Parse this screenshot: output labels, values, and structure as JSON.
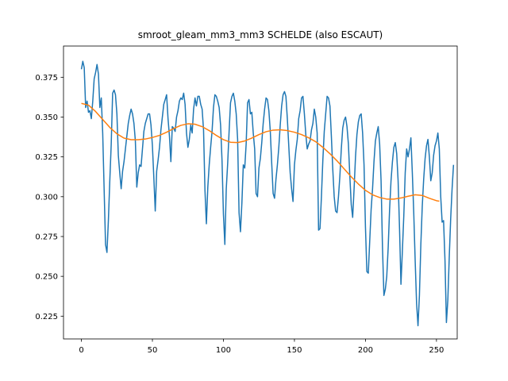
{
  "chart_data": {
    "type": "line",
    "title": "smroot_gleam_mm3_mm3 SCHELDE (also ESCAUT)",
    "xlabel": "",
    "ylabel": "",
    "xlim": [
      -12.6,
      264.6
    ],
    "ylim": [
      0.2107,
      0.3946
    ],
    "x_ticks": [
      0,
      50,
      100,
      150,
      200,
      250
    ],
    "x_tick_labels": [
      "0",
      "50",
      "100",
      "150",
      "200",
      "250"
    ],
    "y_ticks": [
      0.225,
      0.25,
      0.275,
      0.3,
      0.325,
      0.35,
      0.375
    ],
    "y_tick_labels": [
      "0.225",
      "0.250",
      "0.275",
      "0.300",
      "0.325",
      "0.350",
      "0.375"
    ],
    "grid": false,
    "legend": "none",
    "series": [
      {
        "color": "#1f77b4",
        "x_start": 0,
        "x_step": 1,
        "values": [
          0.38,
          0.385,
          0.381,
          0.356,
          0.36,
          0.353,
          0.354,
          0.349,
          0.36,
          0.374,
          0.378,
          0.383,
          0.377,
          0.356,
          0.362,
          0.34,
          0.305,
          0.27,
          0.265,
          0.285,
          0.31,
          0.333,
          0.365,
          0.367,
          0.364,
          0.352,
          0.326,
          0.315,
          0.305,
          0.316,
          0.322,
          0.33,
          0.338,
          0.346,
          0.351,
          0.355,
          0.352,
          0.346,
          0.335,
          0.306,
          0.315,
          0.32,
          0.319,
          0.33,
          0.341,
          0.346,
          0.349,
          0.352,
          0.352,
          0.345,
          0.332,
          0.312,
          0.291,
          0.316,
          0.323,
          0.331,
          0.342,
          0.35,
          0.358,
          0.361,
          0.364,
          0.349,
          0.338,
          0.322,
          0.344,
          0.343,
          0.341,
          0.35,
          0.354,
          0.36,
          0.362,
          0.361,
          0.365,
          0.358,
          0.34,
          0.331,
          0.336,
          0.345,
          0.34,
          0.355,
          0.362,
          0.357,
          0.363,
          0.363,
          0.358,
          0.355,
          0.342,
          0.304,
          0.283,
          0.306,
          0.32,
          0.331,
          0.341,
          0.356,
          0.364,
          0.363,
          0.36,
          0.356,
          0.345,
          0.323,
          0.289,
          0.27,
          0.305,
          0.321,
          0.341,
          0.359,
          0.363,
          0.365,
          0.36,
          0.352,
          0.336,
          0.29,
          0.278,
          0.296,
          0.32,
          0.318,
          0.333,
          0.359,
          0.361,
          0.352,
          0.353,
          0.34,
          0.33,
          0.302,
          0.3,
          0.318,
          0.324,
          0.334,
          0.346,
          0.355,
          0.362,
          0.361,
          0.354,
          0.341,
          0.321,
          0.302,
          0.299,
          0.311,
          0.32,
          0.331,
          0.345,
          0.357,
          0.364,
          0.366,
          0.363,
          0.349,
          0.332,
          0.315,
          0.305,
          0.297,
          0.32,
          0.329,
          0.336,
          0.349,
          0.354,
          0.362,
          0.363,
          0.352,
          0.339,
          0.33,
          0.333,
          0.335,
          0.342,
          0.346,
          0.355,
          0.35,
          0.34,
          0.279,
          0.28,
          0.3,
          0.323,
          0.341,
          0.352,
          0.363,
          0.362,
          0.357,
          0.338,
          0.317,
          0.3,
          0.291,
          0.29,
          0.3,
          0.313,
          0.33,
          0.343,
          0.348,
          0.35,
          0.344,
          0.333,
          0.313,
          0.295,
          0.287,
          0.305,
          0.325,
          0.339,
          0.347,
          0.351,
          0.352,
          0.34,
          0.32,
          0.281,
          0.253,
          0.252,
          0.272,
          0.292,
          0.305,
          0.322,
          0.335,
          0.34,
          0.344,
          0.333,
          0.31,
          0.268,
          0.238,
          0.242,
          0.25,
          0.268,
          0.292,
          0.31,
          0.322,
          0.331,
          0.334,
          0.327,
          0.31,
          0.28,
          0.245,
          0.266,
          0.288,
          0.315,
          0.33,
          0.325,
          0.33,
          0.337,
          0.315,
          0.29,
          0.26,
          0.233,
          0.219,
          0.238,
          0.27,
          0.294,
          0.311,
          0.324,
          0.332,
          0.336,
          0.325,
          0.31,
          0.315,
          0.326,
          0.332,
          0.335,
          0.34,
          0.33,
          0.3,
          0.284,
          0.285,
          0.26,
          0.221,
          0.235,
          0.262,
          0.286,
          0.305,
          0.32
        ]
      },
      {
        "color": "#ff7f0e",
        "points": [
          [
            0,
            0.3586
          ],
          [
            5,
            0.3575
          ],
          [
            10,
            0.3535
          ],
          [
            15,
            0.3485
          ],
          [
            20,
            0.3435
          ],
          [
            25,
            0.3395
          ],
          [
            30,
            0.3368
          ],
          [
            35,
            0.3358
          ],
          [
            40,
            0.3358
          ],
          [
            45,
            0.3362
          ],
          [
            50,
            0.3372
          ],
          [
            55,
            0.3385
          ],
          [
            60,
            0.3405
          ],
          [
            65,
            0.3428
          ],
          [
            70,
            0.3448
          ],
          [
            75,
            0.3458
          ],
          [
            80,
            0.3455
          ],
          [
            85,
            0.344
          ],
          [
            90,
            0.3415
          ],
          [
            95,
            0.3385
          ],
          [
            100,
            0.3358
          ],
          [
            105,
            0.3342
          ],
          [
            110,
            0.334
          ],
          [
            115,
            0.335
          ],
          [
            120,
            0.3368
          ],
          [
            125,
            0.339
          ],
          [
            130,
            0.3408
          ],
          [
            135,
            0.3418
          ],
          [
            140,
            0.342
          ],
          [
            145,
            0.3415
          ],
          [
            150,
            0.3405
          ],
          [
            155,
            0.339
          ],
          [
            160,
            0.337
          ],
          [
            165,
            0.3345
          ],
          [
            170,
            0.331
          ],
          [
            175,
            0.327
          ],
          [
            180,
            0.3225
          ],
          [
            185,
            0.3175
          ],
          [
            190,
            0.3125
          ],
          [
            195,
            0.308
          ],
          [
            200,
            0.304
          ],
          [
            205,
            0.3012
          ],
          [
            210,
            0.2995
          ],
          [
            215,
            0.2985
          ],
          [
            220,
            0.2985
          ],
          [
            225,
            0.2992
          ],
          [
            230,
            0.3003
          ],
          [
            235,
            0.3012
          ],
          [
            240,
            0.3008
          ],
          [
            245,
            0.299
          ],
          [
            250,
            0.2975
          ],
          [
            252,
            0.2972
          ]
        ]
      }
    ]
  }
}
